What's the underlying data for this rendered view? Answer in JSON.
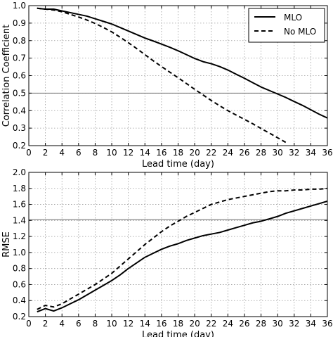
{
  "colors": {
    "line": "#000000",
    "refline": "#6e6e6e",
    "grid": "#9a9a9a",
    "background": "#ffffff"
  },
  "chart_data": [
    {
      "type": "line",
      "xlabel": "Lead time (day)",
      "ylabel": "Correlation Coefficient",
      "xlim": [
        0,
        36
      ],
      "ylim": [
        0.2,
        1.0
      ],
      "xticks": [
        "0",
        "2",
        "4",
        "6",
        "8",
        "10",
        "12",
        "14",
        "16",
        "18",
        "20",
        "22",
        "24",
        "26",
        "28",
        "30",
        "32",
        "34",
        "36"
      ],
      "yticks": [
        "0.2",
        "0.3",
        "0.4",
        "0.5",
        "0.6",
        "0.7",
        "0.8",
        "0.9",
        "1.0"
      ],
      "grid": true,
      "grid_style": "dotted",
      "reference_line": 0.5,
      "legend_position": "top-right",
      "series": [
        {
          "name": "MLO",
          "style": "solid",
          "x": [
            1,
            2,
            3,
            4,
            5,
            6,
            7,
            8,
            9,
            10,
            11,
            12,
            13,
            14,
            15,
            16,
            17,
            18,
            19,
            20,
            21,
            22,
            23,
            24,
            25,
            26,
            27,
            28,
            29,
            30,
            31,
            32,
            33,
            34,
            35,
            36
          ],
          "y": [
            0.985,
            0.98,
            0.98,
            0.97,
            0.96,
            0.95,
            0.94,
            0.925,
            0.91,
            0.895,
            0.875,
            0.855,
            0.835,
            0.815,
            0.798,
            0.78,
            0.762,
            0.742,
            0.72,
            0.698,
            0.68,
            0.668,
            0.652,
            0.632,
            0.608,
            0.585,
            0.56,
            0.535,
            0.515,
            0.495,
            0.475,
            0.452,
            0.43,
            0.405,
            0.38,
            0.358
          ]
        },
        {
          "name": "No MLO",
          "style": "dashed",
          "x": [
            1,
            2,
            3,
            4,
            5,
            6,
            7,
            8,
            9,
            10,
            11,
            12,
            13,
            14,
            15,
            16,
            17,
            18,
            19,
            20,
            21,
            22,
            23,
            24,
            25,
            26,
            27,
            28,
            29,
            30,
            31
          ],
          "y": [
            0.985,
            0.98,
            0.975,
            0.965,
            0.95,
            0.935,
            0.918,
            0.898,
            0.875,
            0.85,
            0.82,
            0.788,
            0.755,
            0.72,
            0.685,
            0.652,
            0.62,
            0.588,
            0.555,
            0.522,
            0.49,
            0.458,
            0.428,
            0.4,
            0.375,
            0.35,
            0.325,
            0.298,
            0.272,
            0.245,
            0.218
          ]
        }
      ]
    },
    {
      "type": "line",
      "xlabel": "Lead time (day)",
      "ylabel": "RMSE",
      "xlim": [
        0,
        36
      ],
      "ylim": [
        0.2,
        2.0
      ],
      "xticks": [
        "0",
        "2",
        "4",
        "6",
        "8",
        "10",
        "12",
        "14",
        "16",
        "18",
        "20",
        "22",
        "24",
        "26",
        "28",
        "30",
        "32",
        "34",
        "36"
      ],
      "yticks": [
        "0.2",
        "0.4",
        "0.6",
        "0.8",
        "1.0",
        "1.2",
        "1.4",
        "1.6",
        "1.8",
        "2.0"
      ],
      "grid": true,
      "grid_style": "dotted",
      "reference_line": 1.41,
      "series": [
        {
          "name": "MLO",
          "style": "solid",
          "x": [
            1,
            2,
            3,
            4,
            5,
            6,
            7,
            8,
            9,
            10,
            11,
            12,
            13,
            14,
            15,
            16,
            17,
            18,
            19,
            20,
            21,
            22,
            23,
            24,
            25,
            26,
            27,
            28,
            29,
            30,
            31,
            32,
            33,
            34,
            35,
            36
          ],
          "y": [
            0.26,
            0.3,
            0.27,
            0.31,
            0.36,
            0.41,
            0.47,
            0.53,
            0.59,
            0.65,
            0.72,
            0.8,
            0.87,
            0.94,
            0.99,
            1.04,
            1.08,
            1.11,
            1.15,
            1.18,
            1.21,
            1.23,
            1.25,
            1.28,
            1.31,
            1.34,
            1.37,
            1.39,
            1.42,
            1.45,
            1.49,
            1.52,
            1.55,
            1.58,
            1.61,
            1.64
          ]
        },
        {
          "name": "No MLO",
          "style": "dashed",
          "x": [
            1,
            2,
            3,
            4,
            5,
            6,
            7,
            8,
            9,
            10,
            11,
            12,
            13,
            14,
            15,
            16,
            17,
            18,
            19,
            20,
            21,
            22,
            23,
            24,
            25,
            26,
            27,
            28,
            29,
            30,
            31,
            32,
            33,
            34,
            35,
            36
          ],
          "y": [
            0.29,
            0.34,
            0.32,
            0.36,
            0.42,
            0.48,
            0.54,
            0.6,
            0.67,
            0.74,
            0.83,
            0.92,
            1.01,
            1.1,
            1.18,
            1.26,
            1.33,
            1.39,
            1.45,
            1.5,
            1.55,
            1.6,
            1.63,
            1.66,
            1.68,
            1.7,
            1.72,
            1.74,
            1.76,
            1.77,
            1.77,
            1.78,
            1.78,
            1.79,
            1.79,
            1.8
          ]
        }
      ]
    }
  ]
}
